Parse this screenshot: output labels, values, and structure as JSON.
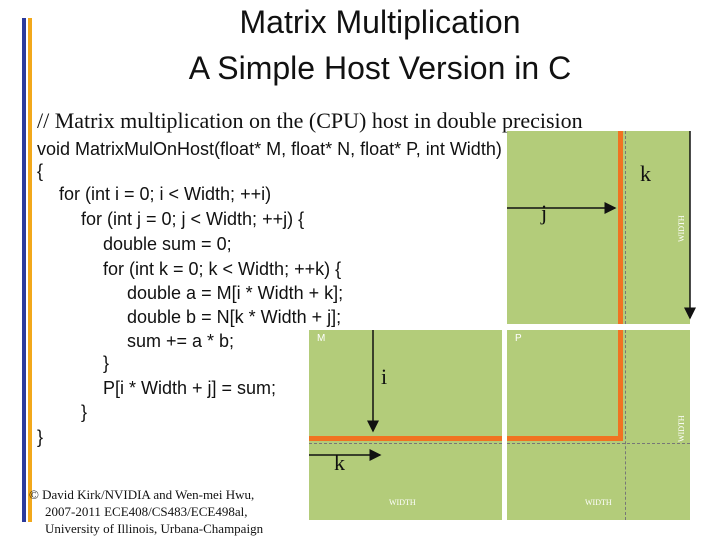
{
  "slide": {
    "title_line1": "Matrix Multiplication",
    "title_line2": "A Simple Host Version in C",
    "comment": "// Matrix multiplication on the (CPU) host in double precision",
    "code": [
      "void MatrixMulOnHost(float* M, float* N, float* P, int Width)",
      "{",
      "for (int i = 0; i < Width; ++i)",
      "for (int j = 0; j < Width; ++j) {",
      "double sum = 0;",
      "for (int k = 0; k < Width; ++k) {",
      "double a = M[i * Width + k];",
      "double b = N[k * Width + j];",
      "sum += a * b;",
      "}",
      "P[i * Width + j] = sum;",
      "}",
      "}"
    ]
  },
  "diagram": {
    "matrix_labels": {
      "M": "M",
      "P": "P"
    },
    "width_labels": {
      "n_side": "WIDTH",
      "p_side": "WIDTH",
      "m_bottom": "WIDTH",
      "p_bottom": "WIDTH"
    },
    "index_labels": {
      "k_top": "k",
      "j": "j",
      "i": "i",
      "k_bottom": "k"
    },
    "colors": {
      "matrix": "#b3cc7a",
      "highlight": "#f07321",
      "accent_blue": "#2b3a9c",
      "accent_orange": "#f2a81b"
    }
  },
  "credit": {
    "line1": "© David Kirk/NVIDIA and Wen-mei Hwu,",
    "line2": "2007-2011 ECE408/CS483/ECE498al,",
    "line3": "University of Illinois, Urbana-Champaign"
  }
}
